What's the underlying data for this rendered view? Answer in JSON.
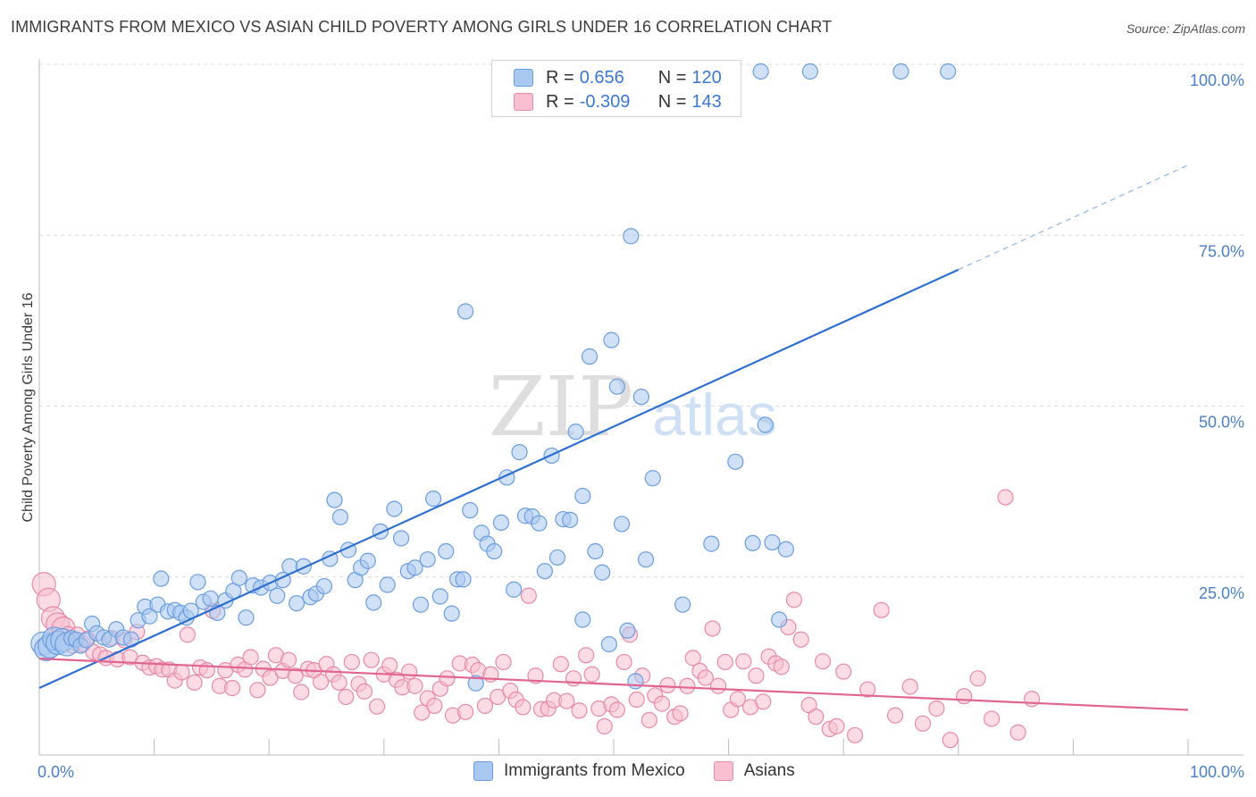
{
  "header": {
    "title": "IMMIGRANTS FROM MEXICO VS ASIAN CHILD POVERTY AMONG GIRLS UNDER 16 CORRELATION CHART",
    "source": "Source: ZipAtlas.com"
  },
  "watermark": {
    "zip": "ZIP",
    "atlas": "atlas"
  },
  "legend": {
    "rows": [
      {
        "r_label": "R =",
        "r_value": "0.656",
        "n_label": "N =",
        "n_value": "120",
        "color": "#a9c8f0",
        "border": "#6a9de0"
      },
      {
        "r_label": "R =",
        "r_value": "-0.309",
        "n_label": "N =",
        "n_value": "143",
        "color": "#f7bfd0",
        "border": "#e889a8"
      }
    ]
  },
  "bottom_legend": {
    "items": [
      {
        "label": "Immigrants from Mexico",
        "color": "#a9c8f0",
        "border": "#6a9de0"
      },
      {
        "label": "Asians",
        "color": "#f7bfd0",
        "border": "#e889a8"
      }
    ]
  },
  "chart_data": {
    "type": "scatter",
    "title": "IMMIGRANTS FROM MEXICO VS ASIAN CHILD POVERTY AMONG GIRLS UNDER 16 CORRELATION CHART",
    "xlabel": "",
    "ylabel": "Child Poverty Among Girls Under 16",
    "xlim": [
      0,
      100
    ],
    "ylim": [
      0,
      100
    ],
    "x_tick_labels": [
      "0.0%",
      "100.0%"
    ],
    "y_tick_labels": [
      "25.0%",
      "50.0%",
      "75.0%",
      "100.0%"
    ],
    "y_ticks": [
      25,
      50,
      75,
      100
    ],
    "grid": true,
    "legend_position": "top-center",
    "series": [
      {
        "name": "Immigrants from Mexico",
        "color": "#6a9de0",
        "fill": "#a9c8f0",
        "trend": {
          "x0": 0,
          "y0": 9.8,
          "x1": 80,
          "y1": 71.0,
          "dashed_to_x": 100,
          "dashed_to_y": 86.3,
          "color": "#2f6fd0"
        },
        "points": [
          [
            0.3,
            16.3
          ],
          [
            0.6,
            15.5
          ],
          [
            0.9,
            15.9
          ],
          [
            1.3,
            17.0
          ],
          [
            1.6,
            16.4
          ],
          [
            2.0,
            16.8
          ],
          [
            2.4,
            16.2
          ],
          [
            2.8,
            17.1
          ],
          [
            3.2,
            16.9
          ],
          [
            3.6,
            16.0
          ],
          [
            4.1,
            16.8
          ],
          [
            4.6,
            19.2
          ],
          [
            5.0,
            17.8
          ],
          [
            5.6,
            17.2
          ],
          [
            6.1,
            16.9
          ],
          [
            6.7,
            18.4
          ],
          [
            7.3,
            17.2
          ],
          [
            8.0,
            16.9
          ],
          [
            8.6,
            19.7
          ],
          [
            9.2,
            21.7
          ],
          [
            9.6,
            20.3
          ],
          [
            10.3,
            22.0
          ],
          [
            10.6,
            25.8
          ],
          [
            11.2,
            21.0
          ],
          [
            11.8,
            21.2
          ],
          [
            12.3,
            20.8
          ],
          [
            12.8,
            20.1
          ],
          [
            13.2,
            21.1
          ],
          [
            13.8,
            25.3
          ],
          [
            14.3,
            22.4
          ],
          [
            14.9,
            22.9
          ],
          [
            15.5,
            20.8
          ],
          [
            16.2,
            22.6
          ],
          [
            16.9,
            24.0
          ],
          [
            17.4,
            25.9
          ],
          [
            18.0,
            20.1
          ],
          [
            18.6,
            24.8
          ],
          [
            19.3,
            24.5
          ],
          [
            20.1,
            25.2
          ],
          [
            20.7,
            23.3
          ],
          [
            21.2,
            25.6
          ],
          [
            21.8,
            27.6
          ],
          [
            22.4,
            22.2
          ],
          [
            23.0,
            27.6
          ],
          [
            23.6,
            23.1
          ],
          [
            24.1,
            23.6
          ],
          [
            24.8,
            24.7
          ],
          [
            25.3,
            28.7
          ],
          [
            25.7,
            37.3
          ],
          [
            26.2,
            34.8
          ],
          [
            26.9,
            30.0
          ],
          [
            27.5,
            25.6
          ],
          [
            28.0,
            27.4
          ],
          [
            28.6,
            28.4
          ],
          [
            29.1,
            22.3
          ],
          [
            29.7,
            32.7
          ],
          [
            30.3,
            24.9
          ],
          [
            30.9,
            36.0
          ],
          [
            31.5,
            31.7
          ],
          [
            32.1,
            26.9
          ],
          [
            32.7,
            27.4
          ],
          [
            33.2,
            22.0
          ],
          [
            33.8,
            28.6
          ],
          [
            34.3,
            37.5
          ],
          [
            34.9,
            23.2
          ],
          [
            35.4,
            29.8
          ],
          [
            35.9,
            20.7
          ],
          [
            36.4,
            25.7
          ],
          [
            36.9,
            25.7
          ],
          [
            37.5,
            35.8
          ],
          [
            38.0,
            10.5
          ],
          [
            38.5,
            32.5
          ],
          [
            39.0,
            30.9
          ],
          [
            39.6,
            29.8
          ],
          [
            40.2,
            34.0
          ],
          [
            40.7,
            40.6
          ],
          [
            41.3,
            24.2
          ],
          [
            41.8,
            44.3
          ],
          [
            42.3,
            35.0
          ],
          [
            42.9,
            34.9
          ],
          [
            43.5,
            33.9
          ],
          [
            44.0,
            26.9
          ],
          [
            44.6,
            43.8
          ],
          [
            45.1,
            28.9
          ],
          [
            45.6,
            34.5
          ],
          [
            46.2,
            34.4
          ],
          [
            46.7,
            47.3
          ],
          [
            47.3,
            19.8
          ],
          [
            47.3,
            37.9
          ],
          [
            47.9,
            58.3
          ],
          [
            48.4,
            29.8
          ],
          [
            49.0,
            26.7
          ],
          [
            49.6,
            16.2
          ],
          [
            49.8,
            60.7
          ],
          [
            50.3,
            53.9
          ],
          [
            50.7,
            33.8
          ],
          [
            51.2,
            18.2
          ],
          [
            51.5,
            75.9
          ],
          [
            51.9,
            10.8
          ],
          [
            52.4,
            52.4
          ],
          [
            52.8,
            28.6
          ],
          [
            53.4,
            40.5
          ],
          [
            56.0,
            22.0
          ],
          [
            58.5,
            30.9
          ],
          [
            60.6,
            42.9
          ],
          [
            62.1,
            31.0
          ],
          [
            63.2,
            48.3
          ],
          [
            63.8,
            31.1
          ],
          [
            64.4,
            19.8
          ],
          [
            65.0,
            30.1
          ],
          [
            37.1,
            64.9
          ],
          [
            56.4,
            100
          ],
          [
            62.8,
            100
          ],
          [
            67.1,
            100
          ],
          [
            75.0,
            100
          ],
          [
            79.1,
            100
          ],
          [
            57.8,
            100
          ],
          [
            60.2,
            100
          ],
          [
            54.3,
            100
          ],
          [
            58.9,
            100
          ]
        ]
      },
      {
        "name": "Asians",
        "color": "#e889a8",
        "fill": "#f7bfd0",
        "trend": {
          "x0": 0,
          "y0": 14.1,
          "x1": 100,
          "y1": 6.6,
          "color": "#e06590"
        },
        "points": [
          [
            0.4,
            25.0
          ],
          [
            0.8,
            22.7
          ],
          [
            1.2,
            20.0
          ],
          [
            1.6,
            19.1
          ],
          [
            2.1,
            18.5
          ],
          [
            2.5,
            17.7
          ],
          [
            2.9,
            16.0
          ],
          [
            3.3,
            17.6
          ],
          [
            3.8,
            16.2
          ],
          [
            4.2,
            17.0
          ],
          [
            4.7,
            15.1
          ],
          [
            5.3,
            14.7
          ],
          [
            5.8,
            14.2
          ],
          [
            6.3,
            17.1
          ],
          [
            6.8,
            14.0
          ],
          [
            7.4,
            16.8
          ],
          [
            7.9,
            14.3
          ],
          [
            8.5,
            18.0
          ],
          [
            9.0,
            13.5
          ],
          [
            9.6,
            12.8
          ],
          [
            10.2,
            13.0
          ],
          [
            10.7,
            12.5
          ],
          [
            11.3,
            12.5
          ],
          [
            11.8,
            10.9
          ],
          [
            12.4,
            12.1
          ],
          [
            12.9,
            17.6
          ],
          [
            13.5,
            10.6
          ],
          [
            14.0,
            12.8
          ],
          [
            14.6,
            12.4
          ],
          [
            15.1,
            21.1
          ],
          [
            15.7,
            10.1
          ],
          [
            16.2,
            12.4
          ],
          [
            16.8,
            9.8
          ],
          [
            17.3,
            13.2
          ],
          [
            17.9,
            12.5
          ],
          [
            18.4,
            14.3
          ],
          [
            19.0,
            9.5
          ],
          [
            19.5,
            12.6
          ],
          [
            20.1,
            11.3
          ],
          [
            20.6,
            14.6
          ],
          [
            21.2,
            12.3
          ],
          [
            21.7,
            13.9
          ],
          [
            22.3,
            11.6
          ],
          [
            22.8,
            9.2
          ],
          [
            23.4,
            12.6
          ],
          [
            23.9,
            12.4
          ],
          [
            24.5,
            10.7
          ],
          [
            25.0,
            13.3
          ],
          [
            25.6,
            11.8
          ],
          [
            26.1,
            10.6
          ],
          [
            26.7,
            8.5
          ],
          [
            27.2,
            13.6
          ],
          [
            27.8,
            10.4
          ],
          [
            28.3,
            9.3
          ],
          [
            28.9,
            13.9
          ],
          [
            29.4,
            7.1
          ],
          [
            30.0,
            11.8
          ],
          [
            30.5,
            13.1
          ],
          [
            31.1,
            11.0
          ],
          [
            31.6,
            9.9
          ],
          [
            32.2,
            12.2
          ],
          [
            32.7,
            10.1
          ],
          [
            33.3,
            6.2
          ],
          [
            33.8,
            8.3
          ],
          [
            34.4,
            7.2
          ],
          [
            34.9,
            9.7
          ],
          [
            35.5,
            11.2
          ],
          [
            36.0,
            5.8
          ],
          [
            36.6,
            13.4
          ],
          [
            37.1,
            6.3
          ],
          [
            37.7,
            13.2
          ],
          [
            38.2,
            12.4
          ],
          [
            38.8,
            7.2
          ],
          [
            39.3,
            11.8
          ],
          [
            39.9,
            8.5
          ],
          [
            40.4,
            13.6
          ],
          [
            41.0,
            9.4
          ],
          [
            41.5,
            8.1
          ],
          [
            42.1,
            7.0
          ],
          [
            42.6,
            23.3
          ],
          [
            43.2,
            11.6
          ],
          [
            43.7,
            6.7
          ],
          [
            44.3,
            6.8
          ],
          [
            44.8,
            8.0
          ],
          [
            45.4,
            13.3
          ],
          [
            45.9,
            7.9
          ],
          [
            46.5,
            11.2
          ],
          [
            47.0,
            6.5
          ],
          [
            47.6,
            14.6
          ],
          [
            48.1,
            11.8
          ],
          [
            48.7,
            6.8
          ],
          [
            49.2,
            4.2
          ],
          [
            49.8,
            7.4
          ],
          [
            50.3,
            6.6
          ],
          [
            50.9,
            13.6
          ],
          [
            51.4,
            17.6
          ],
          [
            52.0,
            8.1
          ],
          [
            52.5,
            11.6
          ],
          [
            53.1,
            5.1
          ],
          [
            53.6,
            8.7
          ],
          [
            54.2,
            7.5
          ],
          [
            54.7,
            10.2
          ],
          [
            55.3,
            5.6
          ],
          [
            55.8,
            6.1
          ],
          [
            56.4,
            10.1
          ],
          [
            56.9,
            14.2
          ],
          [
            57.5,
            12.3
          ],
          [
            58.0,
            11.3
          ],
          [
            58.6,
            18.5
          ],
          [
            59.1,
            10.1
          ],
          [
            59.7,
            13.6
          ],
          [
            60.2,
            6.6
          ],
          [
            60.8,
            8.2
          ],
          [
            61.3,
            13.7
          ],
          [
            61.9,
            7.0
          ],
          [
            62.4,
            11.6
          ],
          [
            63.0,
            7.8
          ],
          [
            63.5,
            14.4
          ],
          [
            64.1,
            13.4
          ],
          [
            64.6,
            12.9
          ],
          [
            65.2,
            18.7
          ],
          [
            65.7,
            22.7
          ],
          [
            66.3,
            16.9
          ],
          [
            67.0,
            7.3
          ],
          [
            67.6,
            5.6
          ],
          [
            68.2,
            13.7
          ],
          [
            68.8,
            3.8
          ],
          [
            69.4,
            4.2
          ],
          [
            70.0,
            12.2
          ],
          [
            71.0,
            2.9
          ],
          [
            72.1,
            9.6
          ],
          [
            73.3,
            21.2
          ],
          [
            74.5,
            5.8
          ],
          [
            75.8,
            10.0
          ],
          [
            76.9,
            4.6
          ],
          [
            78.1,
            6.8
          ],
          [
            79.3,
            2.2
          ],
          [
            80.5,
            8.6
          ],
          [
            81.7,
            11.2
          ],
          [
            82.9,
            5.3
          ],
          [
            84.1,
            37.7
          ],
          [
            85.2,
            3.3
          ],
          [
            86.4,
            8.2
          ]
        ]
      }
    ]
  }
}
